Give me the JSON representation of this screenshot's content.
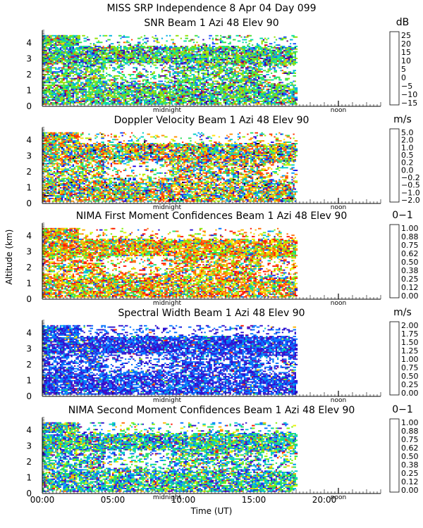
{
  "figure": {
    "title": "MISS SRP Independence   8 Apr 04 Day 099",
    "ylabel": "Altitude (km)",
    "xlabel": "Time (UT)",
    "x_ticks": [
      "00:00",
      "05:00",
      "10:00",
      "15:00",
      "20:00"
    ],
    "markers": {
      "midnight": "midnight",
      "noon": "noon"
    }
  },
  "chart_data": [
    {
      "type": "heatmap",
      "title": "SNR Beam 1 Azi  48 Elev 90",
      "unit": "dB",
      "x_range": [
        0,
        24
      ],
      "data_extent_hours": 18,
      "y_ticks": [
        "0",
        "1",
        "2",
        "3",
        "4"
      ],
      "ylim": [
        0,
        4.8
      ],
      "colorbar_labels": [
        "25",
        "20",
        "15",
        "10",
        "5",
        "0",
        "−5",
        "−10",
        "−15"
      ],
      "colorbar_colors": [
        "#ffd000",
        "#ff9900",
        "#ff4a00",
        "#e00020",
        "#6a0070",
        "#2a00b0",
        "#1a50ff",
        "#00b0e0",
        "#00e0a0",
        "#40e040",
        "#90e000"
      ]
    },
    {
      "type": "heatmap",
      "title": "Doppler Velocity Beam 1 Azi  48 Elev 90",
      "unit": "m/s",
      "x_range": [
        0,
        24
      ],
      "data_extent_hours": 18,
      "y_ticks": [
        "0",
        "1",
        "2",
        "3",
        "4"
      ],
      "ylim": [
        0,
        4.8
      ],
      "colorbar_labels": [
        "5.0",
        "2.0",
        "1.0",
        "0.5",
        "0.2",
        "0.0",
        "−0.2",
        "−0.5",
        "−1.0",
        "−2.0"
      ],
      "colorbar_colors": [
        "#000000",
        "#5a0080",
        "#2000e0",
        "#0050ff",
        "#00a0ff",
        "#00d0c0",
        "#30e060",
        "#a0f000",
        "#ffe000",
        "#ff9000",
        "#ff3000"
      ]
    },
    {
      "type": "heatmap",
      "title": "NIMA First Moment Confidences Beam 1 Azi  48 Elev 90",
      "unit": "0−1",
      "x_range": [
        0,
        24
      ],
      "data_extent_hours": 18,
      "y_ticks": [
        "0",
        "1",
        "2",
        "3",
        "4"
      ],
      "ylim": [
        0,
        4.8
      ],
      "colorbar_labels": [
        "1.00",
        "0.88",
        "0.75",
        "0.62",
        "0.50",
        "0.38",
        "0.25",
        "0.12",
        "0.00"
      ],
      "colorbar_colors": [
        "#ff1500",
        "#ff6a00",
        "#ffb400",
        "#e8f000",
        "#80f000",
        "#20e060",
        "#00c8d0",
        "#0070ff",
        "#2a10d0",
        "#6a00a0"
      ]
    },
    {
      "type": "heatmap",
      "title": "Spectral Width Beam 1 Azi  48 Elev 90",
      "unit": "m/s",
      "x_range": [
        0,
        24
      ],
      "data_extent_hours": 18,
      "y_ticks": [
        "0",
        "1",
        "2",
        "3",
        "4"
      ],
      "ylim": [
        0,
        4.8
      ],
      "colorbar_labels": [
        "2.00",
        "1.75",
        "1.50",
        "1.25",
        "1.00",
        "0.75",
        "0.50",
        "0.25",
        "0.00"
      ],
      "colorbar_colors": [
        "#ff1500",
        "#ff6a00",
        "#ffb400",
        "#e8f000",
        "#80f000",
        "#20e060",
        "#00c8d0",
        "#0070ff",
        "#2a10d0",
        "#6a00a0"
      ]
    },
    {
      "type": "heatmap",
      "title": "NIMA Second Moment Confidences Beam 1 Azi  48 Elev 90",
      "unit": "0−1",
      "x_range": [
        0,
        24
      ],
      "data_extent_hours": 18,
      "y_ticks": [
        "0",
        "1",
        "2",
        "3",
        "4"
      ],
      "ylim": [
        0,
        4.8
      ],
      "colorbar_labels": [
        "1.00",
        "0.88",
        "0.75",
        "0.62",
        "0.50",
        "0.38",
        "0.25",
        "0.12",
        "0.00"
      ],
      "colorbar_colors": [
        "#ff1500",
        "#ff6a00",
        "#ffb400",
        "#e8f000",
        "#80f000",
        "#20e060",
        "#00c8d0",
        "#0070ff",
        "#2a10d0",
        "#6a00a0"
      ]
    }
  ]
}
